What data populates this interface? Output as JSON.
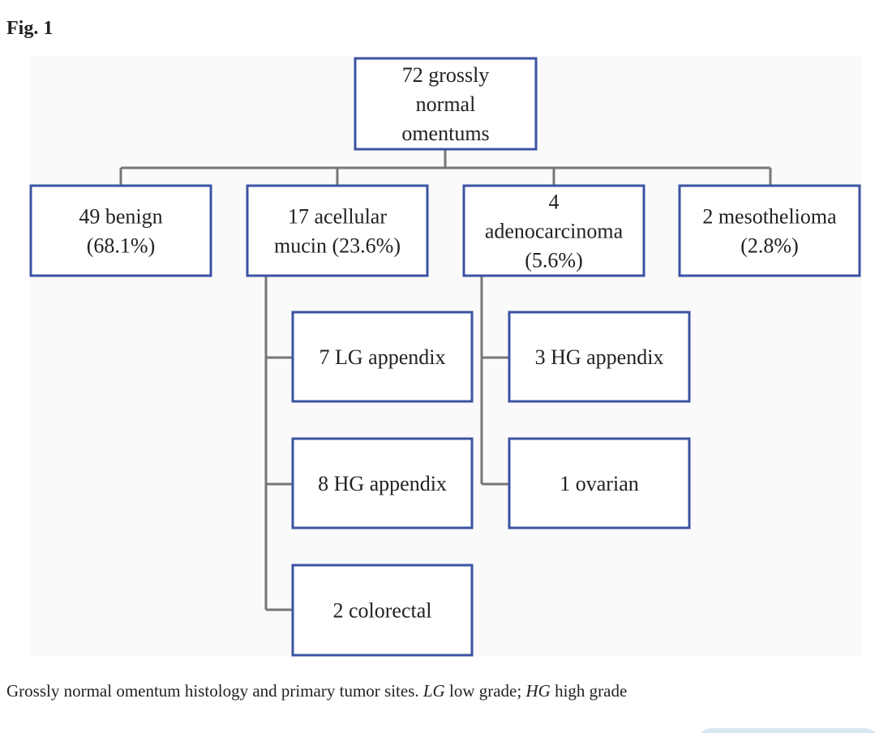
{
  "figure_label": "Fig. 1",
  "nodes": [
    {
      "lines": [
        "72 grossly",
        "normal",
        "omentums"
      ]
    },
    {
      "lines": [
        "49 benign",
        "(68.1%)"
      ]
    },
    {
      "lines": [
        "17 acellular",
        "mucin (23.6%)"
      ]
    },
    {
      "lines": [
        "4",
        "adenocarcinoma",
        "(5.6%)"
      ]
    },
    {
      "lines": [
        "2 mesothelioma",
        "(2.8%)"
      ]
    },
    {
      "lines": [
        "7 LG appendix"
      ]
    },
    {
      "lines": [
        "8 HG appendix"
      ]
    },
    {
      "lines": [
        "2 colorectal"
      ]
    },
    {
      "lines": [
        "3 HG appendix"
      ]
    },
    {
      "lines": [
        "1 ovarian"
      ]
    }
  ],
  "caption": [
    {
      "text": "Grossly normal omentum histology and primary tumor sites. ",
      "italic": false
    },
    {
      "text": "LG",
      "italic": true
    },
    {
      "text": " low grade; ",
      "italic": false
    },
    {
      "text": "HG",
      "italic": true
    },
    {
      "text": " high grade",
      "italic": false
    }
  ]
}
